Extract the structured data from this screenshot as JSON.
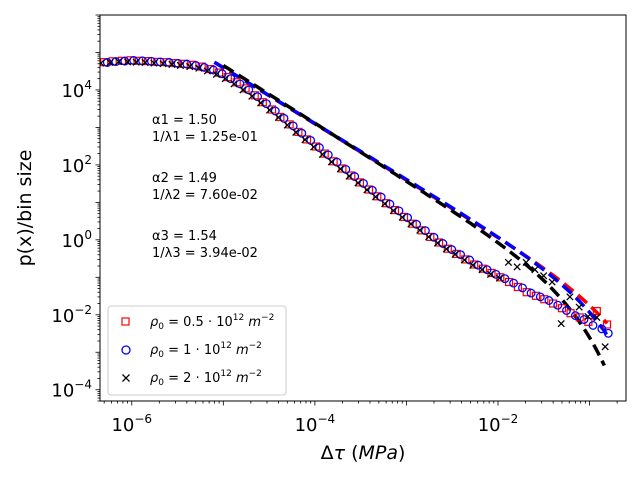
{
  "chart_data": {
    "type": "scatter",
    "xscale": "log",
    "yscale": "log",
    "xlim": [
      4.5e-07,
      0.25
    ],
    "ylim": [
      5e-05,
      1000000.0
    ],
    "xlabel": "Δτ (MPa)",
    "ylabel": "p(x)/bin size",
    "xticks": [
      {
        "value": 1e-06,
        "base": "10",
        "exp": "−6"
      },
      {
        "value": 0.0001,
        "base": "10",
        "exp": "−4"
      },
      {
        "value": 0.01,
        "base": "10",
        "exp": "−2"
      }
    ],
    "yticks": [
      {
        "value": 10000.0,
        "base": "10",
        "exp": "4"
      },
      {
        "value": 100.0,
        "base": "10",
        "exp": "2"
      },
      {
        "value": 1,
        "base": "10",
        "exp": "0"
      },
      {
        "value": 0.01,
        "base": "10",
        "exp": "−2"
      },
      {
        "value": 0.0001,
        "base": "10",
        "exp": "−4"
      }
    ],
    "annotations": [
      {
        "line1": "α1 = 1.50",
        "line2": "1/λ1 = 1.25e-01"
      },
      {
        "line1": "α2 = 1.49",
        "line2": "1/λ2 = 7.60e-02"
      },
      {
        "line1": "α3 = 1.54",
        "line2": "1/λ3 = 3.94e-02"
      }
    ],
    "legend_position": "lower-left",
    "series": [
      {
        "name": "rho0 = 0.5·10^12 m^-2",
        "legend_pre": "ρ",
        "legend_sub": "0",
        "legend_mid": " = 0.5 · 10",
        "legend_sup1": "12",
        "legend_unit": " m",
        "legend_sup2": "−2",
        "marker": "square",
        "color": "#ff0000",
        "x": [
          5e-07,
          6.2e-07,
          7.8e-07,
          9.7e-07,
          1.2e-06,
          1.5e-06,
          1.9e-06,
          2.4e-06,
          3e-06,
          3.7e-06,
          4.6e-06,
          5.8e-06,
          7.2e-06,
          9e-06,
          1.12e-05,
          1.4e-05,
          1.75e-05,
          2.2e-05,
          2.7e-05,
          3.4e-05,
          4.2e-05,
          5.3e-05,
          6.6e-05,
          8.2e-05,
          0.000103,
          0.000128,
          0.00016,
          0.0002,
          0.00025,
          0.00031,
          0.00039,
          0.00048,
          0.0006,
          0.00075,
          0.00094,
          0.00117,
          0.00146,
          0.00182,
          0.00227,
          0.00283,
          0.00353,
          0.0044,
          0.0055,
          0.00685,
          0.0085,
          0.0106,
          0.0132,
          0.0165,
          0.0206,
          0.026,
          0.032,
          0.04,
          0.05,
          0.062,
          0.078,
          0.097,
          0.12,
          0.155
        ],
        "y": [
          55000,
          58000,
          60000,
          62000,
          60000,
          59000,
          56000,
          55000,
          52000,
          50000,
          47000,
          42000,
          36000,
          29000,
          22000,
          16000,
          11000,
          7200,
          4700,
          3000,
          1900,
          1200,
          760,
          480,
          310,
          200,
          125,
          80,
          52,
          34,
          22,
          14.5,
          9.5,
          6.2,
          4.1,
          2.7,
          1.8,
          1.2,
          0.85,
          0.58,
          0.42,
          0.3,
          0.22,
          0.17,
          0.13,
          0.1,
          0.075,
          0.055,
          0.04,
          0.032,
          0.026,
          0.02,
          0.015,
          0.011,
          0.0085,
          0.0065,
          0.0125,
          0.0055
        ]
      },
      {
        "name": "rho0 = 1·10^12 m^-2",
        "legend_pre": "ρ",
        "legend_sub": "0",
        "legend_mid": " = 1 · 10",
        "legend_sup1": "12",
        "legend_unit": " m",
        "legend_sup2": "−2",
        "marker": "circle",
        "color": "#0000ff",
        "x": [
          5.4e-07,
          6.7e-07,
          8.4e-07,
          1.05e-06,
          1.31e-06,
          1.64e-06,
          2.05e-06,
          2.56e-06,
          3.2e-06,
          4e-06,
          5e-06,
          6.2e-06,
          7.8e-06,
          9.7e-06,
          1.21e-05,
          1.52e-05,
          1.9e-05,
          2.37e-05,
          2.96e-05,
          3.7e-05,
          4.6e-05,
          5.8e-05,
          7.2e-05,
          9e-05,
          0.000112,
          0.00014,
          0.000175,
          0.000218,
          0.000272,
          0.00034,
          0.000425,
          0.00053,
          0.00066,
          0.00083,
          0.00103,
          0.00129,
          0.00161,
          0.002,
          0.0025,
          0.00313,
          0.0039,
          0.0049,
          0.0061,
          0.0076,
          0.0095,
          0.0119,
          0.0148,
          0.0185,
          0.023,
          0.029,
          0.036,
          0.045,
          0.056,
          0.07,
          0.087,
          0.109,
          0.136,
          0.16
        ],
        "y": [
          54000,
          57000,
          59000,
          61000,
          60000,
          58000,
          56000,
          54000,
          51000,
          49000,
          45000,
          40000,
          34000,
          27000,
          20000,
          14500,
          10000,
          6600,
          4300,
          2750,
          1750,
          1100,
          700,
          450,
          290,
          185,
          118,
          76,
          49,
          32,
          21,
          13.8,
          9,
          5.9,
          3.9,
          2.6,
          1.75,
          1.17,
          0.8,
          0.55,
          0.4,
          0.29,
          0.21,
          0.16,
          0.12,
          0.092,
          0.07,
          0.052,
          0.038,
          0.03,
          0.024,
          0.018,
          0.013,
          0.0095,
          0.0075,
          0.0052,
          0.0042,
          0.0032
        ]
      },
      {
        "name": "rho0 = 2·10^12 m^-2",
        "legend_pre": "ρ",
        "legend_sub": "0",
        "legend_mid": " = 2 · 10",
        "legend_sup1": "12",
        "legend_unit": " m",
        "legend_sup2": "−2",
        "marker": "x",
        "color": "#000000",
        "x": [
          4.6e-07,
          5.8e-07,
          7.2e-07,
          9e-07,
          1.12e-06,
          1.4e-06,
          1.75e-06,
          2.2e-06,
          2.75e-06,
          3.4e-06,
          4.3e-06,
          5.4e-06,
          6.7e-06,
          8.4e-06,
          1.05e-05,
          1.31e-05,
          1.64e-05,
          2.05e-05,
          2.56e-05,
          3.2e-05,
          4e-05,
          5e-05,
          6.2e-05,
          7.8e-05,
          9.7e-05,
          0.000121,
          0.000152,
          0.00019,
          0.000237,
          0.000296,
          0.00037,
          0.00046,
          0.00058,
          0.00072,
          0.0009,
          0.00112,
          0.0014,
          0.00175,
          0.00219,
          0.00273,
          0.0034,
          0.0043,
          0.0053,
          0.0067,
          0.0083,
          0.0104,
          0.013,
          0.0162,
          0.0203,
          0.0253,
          0.0315,
          0.039,
          0.049,
          0.061,
          0.077,
          0.096,
          0.12,
          0.148
        ],
        "y": [
          52000,
          54000,
          57000,
          56000,
          55000,
          54000,
          52000,
          50000,
          48000,
          45000,
          42000,
          38000,
          32000,
          26000,
          20000,
          14500,
          10000,
          6800,
          4500,
          2900,
          1850,
          1150,
          740,
          470,
          300,
          190,
          120,
          78,
          50,
          33,
          21.5,
          14,
          9.2,
          6,
          4,
          2.65,
          1.8,
          1.2,
          0.82,
          0.57,
          0.41,
          0.29,
          0.21,
          0.16,
          0.12,
          0.095,
          0.25,
          0.19,
          0.25,
          0.16,
          0.11,
          0.075,
          0.0058,
          0.03,
          0.016,
          0.009,
          0.0085,
          0.0014
        ]
      }
    ],
    "fits": [
      {
        "name": "fit 1",
        "color": "#ff0000",
        "x": [
          8e-06,
          0.155
        ],
        "alpha": 1.5,
        "inv_lambda": 0.125,
        "y_at_x0": 55000
      },
      {
        "name": "fit 2",
        "color": "#0000ff",
        "x": [
          8e-06,
          0.16
        ],
        "alpha": 1.49,
        "inv_lambda": 0.076,
        "y_at_x0": 55000
      },
      {
        "name": "fit 3",
        "color": "#000000",
        "x": [
          1e-05,
          0.145
        ],
        "alpha": 1.54,
        "inv_lambda": 0.0394,
        "y_at_x0": 45000
      }
    ]
  }
}
